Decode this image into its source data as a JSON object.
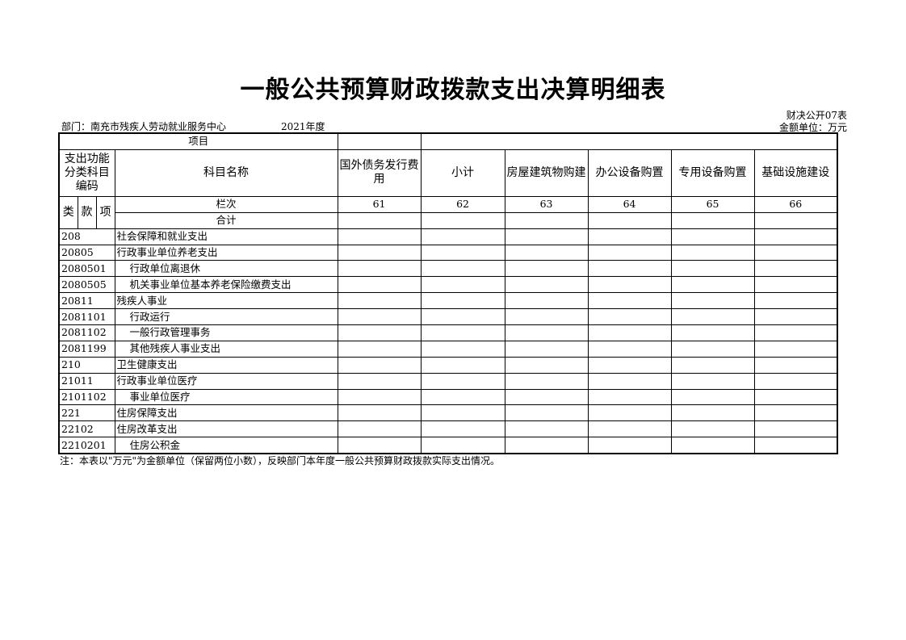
{
  "title": "一般公共预算财政拨款支出决算明细表",
  "form_no": "财决公开07表",
  "unit": "金额单位：万元",
  "department": "部门：南充市残疾人劳动就业服务中心",
  "year": "2021年度",
  "header": {
    "project": "项目",
    "code_label": "支出功能分类科目编码",
    "name_label": "科目名称",
    "columns": [
      "国外债务发行费用",
      "小计",
      "房屋建筑物购建",
      "办公设备购置",
      "专用设备购置",
      "基础设施建设"
    ],
    "lei": "类",
    "kuan": "款",
    "xiang": "项",
    "lanci": "栏次",
    "column_numbers": [
      "61",
      "62",
      "63",
      "64",
      "65",
      "66"
    ],
    "total": "合计"
  },
  "rows": [
    {
      "code": "208",
      "name": "社会保障和就业支出",
      "level": 1
    },
    {
      "code": "20805",
      "name": "行政事业单位养老支出",
      "level": 2
    },
    {
      "code": "2080501",
      "name": "行政单位离退休",
      "level": 3
    },
    {
      "code": "2080505",
      "name": "机关事业单位基本养老保险缴费支出",
      "level": 3
    },
    {
      "code": "20811",
      "name": "残疾人事业",
      "level": 2
    },
    {
      "code": "2081101",
      "name": "行政运行",
      "level": 3
    },
    {
      "code": "2081102",
      "name": "一般行政管理事务",
      "level": 3
    },
    {
      "code": "2081199",
      "name": "其他残疾人事业支出",
      "level": 3
    },
    {
      "code": "210",
      "name": "卫生健康支出",
      "level": 1
    },
    {
      "code": "21011",
      "name": "行政事业单位医疗",
      "level": 2
    },
    {
      "code": "2101102",
      "name": "事业单位医疗",
      "level": 3
    },
    {
      "code": "221",
      "name": "住房保障支出",
      "level": 1
    },
    {
      "code": "22102",
      "name": "住房改革支出",
      "level": 2
    },
    {
      "code": "2210201",
      "name": "住房公积金",
      "level": 3
    }
  ],
  "note": "注：本表以\"万元\"为金额单位（保留两位小数），反映部门本年度一般公共预算财政拨款实际支出情况。"
}
